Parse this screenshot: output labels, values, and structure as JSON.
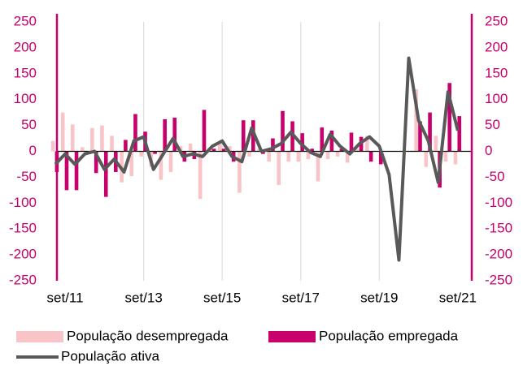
{
  "chart_data": {
    "type": "bar-line",
    "categories": [
      null,
      "set/11",
      null,
      null,
      null,
      null,
      null,
      null,
      null,
      "set/13",
      null,
      null,
      null,
      null,
      null,
      null,
      null,
      "set/15",
      null,
      null,
      null,
      null,
      null,
      null,
      null,
      "set/17",
      null,
      null,
      null,
      null,
      null,
      null,
      null,
      "set/19",
      null,
      null,
      null,
      null,
      null,
      null,
      null,
      "set/21"
    ],
    "series": [
      {
        "name": "População desempregada",
        "type": "bar",
        "color": "#f9c4c8",
        "values": [
          20,
          75,
          52,
          8,
          45,
          50,
          30,
          -60,
          -48,
          -10,
          -30,
          -55,
          -40,
          10,
          15,
          -92,
          5,
          15,
          10,
          -80,
          -10,
          5,
          -20,
          -65,
          -20,
          -20,
          -15,
          -58,
          -15,
          -10,
          -22,
          5,
          30,
          0,
          0,
          0,
          0,
          120,
          -30,
          30,
          -20,
          -25
        ]
      },
      {
        "name": "População empregada",
        "type": "bar",
        "color": "#c7006c",
        "values": [
          -40,
          -75,
          -75,
          0,
          -42,
          -88,
          -40,
          22,
          72,
          38,
          -5,
          62,
          65,
          -20,
          -15,
          80,
          5,
          5,
          -20,
          60,
          60,
          -5,
          25,
          78,
          58,
          35,
          5,
          46,
          40,
          5,
          36,
          28,
          -20,
          -25,
          0,
          0,
          0,
          58,
          75,
          -70,
          132,
          68
        ]
      },
      {
        "name": "População ativa",
        "type": "line",
        "color": "#595959",
        "values": [
          -25,
          -5,
          -25,
          -5,
          0,
          -35,
          -15,
          -40,
          20,
          28,
          -35,
          -5,
          25,
          -10,
          -5,
          -10,
          10,
          20,
          -10,
          -20,
          45,
          0,
          5,
          15,
          37,
          15,
          -2,
          -10,
          33,
          10,
          -5,
          15,
          28,
          10,
          -45,
          -210,
          180,
          60,
          20,
          -60,
          115,
          40
        ]
      }
    ],
    "ylim": [
      -250,
      250
    ],
    "yticks": [
      -250,
      -200,
      -150,
      -100,
      -50,
      0,
      50,
      100,
      150,
      200,
      250
    ],
    "y2lim": [
      -250,
      250
    ],
    "y2ticks": [
      -250,
      -200,
      -150,
      -100,
      -50,
      0,
      50,
      100,
      150,
      200,
      250
    ],
    "axis_color": "#c7006c",
    "grid": true,
    "legend": "bottom"
  }
}
